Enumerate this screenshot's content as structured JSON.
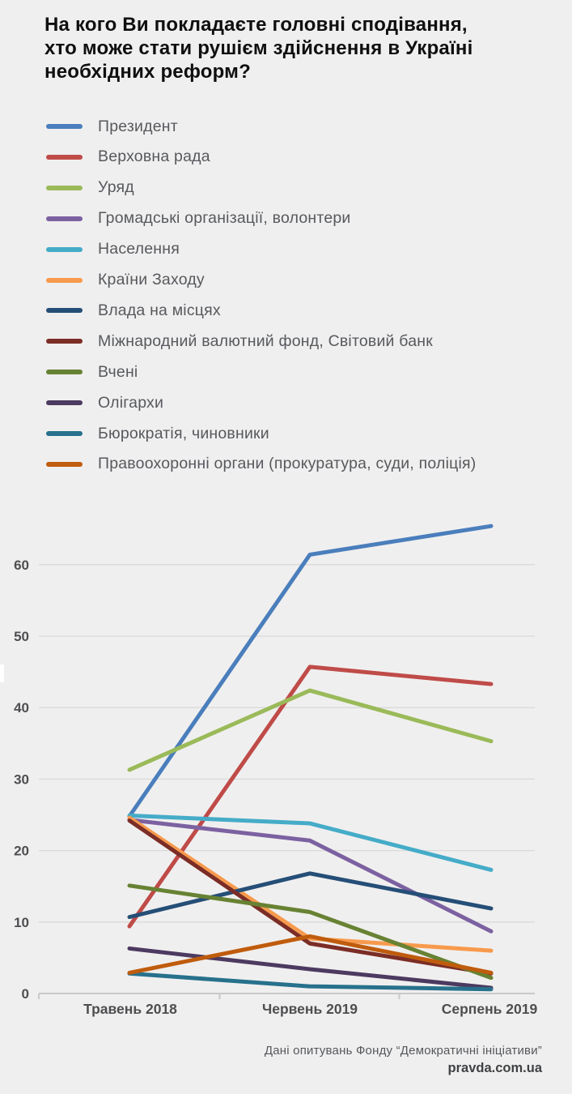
{
  "title_lines": [
    "На кого Ви покладаєте головні сподівання,",
    "хто може стати рушієм здійснення в Україні",
    "необхідних реформ?"
  ],
  "chart_data": {
    "type": "line",
    "categories": [
      "Травень 2018",
      "Червень 2019",
      "Серпень 2019"
    ],
    "series": [
      {
        "name": "Президент",
        "color": "#4a7ebc",
        "values": [
          24.8,
          61.4,
          65.4
        ]
      },
      {
        "name": "Верховна рада",
        "color": "#bf4b48",
        "values": [
          9.4,
          45.7,
          43.3
        ]
      },
      {
        "name": "Уряд",
        "color": "#9aba59",
        "values": [
          31.3,
          42.4,
          35.3
        ]
      },
      {
        "name": "Громадські організації, волонтери",
        "color": "#7c61a1",
        "values": [
          24.3,
          21.4,
          8.7
        ]
      },
      {
        "name": "Населення",
        "color": "#45acc8",
        "values": [
          24.9,
          23.8,
          17.3
        ]
      },
      {
        "name": "Країни Заходу",
        "color": "#f79a4d",
        "values": [
          24.6,
          7.7,
          6.0
        ]
      },
      {
        "name": "Влада на місцях",
        "color": "#254e77",
        "values": [
          10.7,
          16.8,
          11.9
        ]
      },
      {
        "name": "Міжнародний валютний фонд, Світовий банк",
        "color": "#7b2d26",
        "values": [
          24.2,
          7.0,
          2.8
        ]
      },
      {
        "name": "Вчені",
        "color": "#678233",
        "values": [
          15.1,
          11.4,
          2.2
        ]
      },
      {
        "name": "Олігархи",
        "color": "#4c3a60",
        "values": [
          6.3,
          3.4,
          0.8
        ]
      },
      {
        "name": "Бюрократія, чиновники",
        "color": "#27718c",
        "values": [
          2.8,
          1.0,
          0.6
        ]
      },
      {
        "name": "Правоохоронні органи (прокуратура, суди, поліція)",
        "color": "#bf5c0d",
        "values": [
          2.9,
          8.0,
          2.9
        ]
      }
    ],
    "yticks": [
      0,
      10,
      20,
      30,
      40,
      50,
      60
    ],
    "ylim": [
      0,
      67
    ],
    "grid": true,
    "legend_position": "top-left",
    "title": "На кого Ви покладаєте головні сподівання, хто може стати рушієм здійснення в Україні необхідних реформ?"
  },
  "footer": {
    "source": "Дані опитувань Фонду “Демократичні ініціативи”",
    "site": "pravda.com.ua"
  },
  "colors": {
    "background": "#f0efef",
    "title_text": "#0f0f0f",
    "legend_text": "#56595d",
    "axis_text": "#4d4e50",
    "gridline": "#dadada",
    "axis_line": "#c9c9c9",
    "footer_text": "#55585c",
    "footer_site_text": "#3f4143"
  }
}
